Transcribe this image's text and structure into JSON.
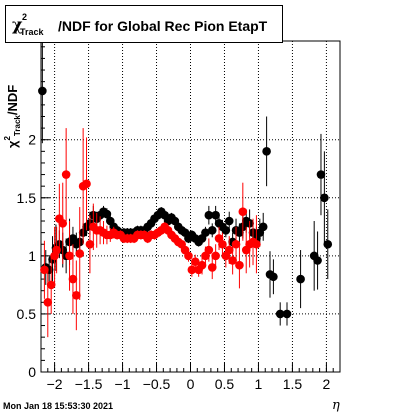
{
  "title": {
    "chi": "χ",
    "sup": "2",
    "sub": "Track",
    "rest": "/NDF for Global Rec Pion EtapT"
  },
  "ylabel": {
    "chi": "χ",
    "sup": "2",
    "sub": "Track",
    "rest": "/NDF"
  },
  "xlabel": "η",
  "timestamp": "Mon Jan 18 15:53:30 2021",
  "colors": {
    "series_black": "#000000",
    "series_red": "#ff0000"
  },
  "chart_data": {
    "type": "scatter",
    "title": "χ²Track/NDF for Global Rec Pion EtapT",
    "xlabel": "η",
    "ylabel": "χ²Track/NDF",
    "xlim": [
      -2.2,
      2.2
    ],
    "ylim": [
      0,
      2.85
    ],
    "grid": true,
    "x_ticks": [
      {
        "v": -2,
        "label": "−2"
      },
      {
        "v": -1.5,
        "label": "−1.5"
      },
      {
        "v": -1,
        "label": "−1"
      },
      {
        "v": -0.5,
        "label": "−0.5"
      },
      {
        "v": 0,
        "label": "0"
      },
      {
        "v": 0.5,
        "label": "0.5"
      },
      {
        "v": 1,
        "label": "1"
      },
      {
        "v": 1.5,
        "label": "1.5"
      },
      {
        "v": 2,
        "label": "2"
      }
    ],
    "y_ticks": [
      {
        "v": 0,
        "label": "0"
      },
      {
        "v": 0.5,
        "label": "0.5"
      },
      {
        "v": 1,
        "label": "1"
      },
      {
        "v": 1.5,
        "label": "1.5"
      },
      {
        "v": 2,
        "label": "2"
      }
    ],
    "series": [
      {
        "color": "#000000",
        "points": [
          [
            -2.18,
            2.42,
            0.45
          ],
          [
            -2.13,
            0.9,
            0.15
          ],
          [
            -2.08,
            0.88,
            0.1
          ],
          [
            -2.03,
            0.97,
            0.2
          ],
          [
            -1.98,
            1.07,
            0.2
          ],
          [
            -1.93,
            1.1,
            0.12
          ],
          [
            -1.88,
            1.05,
            0.15
          ],
          [
            -1.83,
            1.0,
            0.15
          ],
          [
            -1.78,
            1.12,
            0.2
          ],
          [
            -1.73,
            1.15,
            0.1
          ],
          [
            -1.68,
            1.1,
            0.1
          ],
          [
            -1.63,
            1.12,
            0.1
          ],
          [
            -1.58,
            1.2,
            0.08
          ],
          [
            -1.53,
            1.25,
            0.08
          ],
          [
            -1.48,
            1.28,
            0.1
          ],
          [
            -1.43,
            1.35,
            0.08
          ],
          [
            -1.38,
            1.32,
            0.06
          ],
          [
            -1.33,
            1.35,
            0.05
          ],
          [
            -1.28,
            1.38,
            0.05
          ],
          [
            -1.23,
            1.36,
            0.05
          ],
          [
            -1.18,
            1.3,
            0.05
          ],
          [
            -1.13,
            1.25,
            0.05
          ],
          [
            -1.08,
            1.22,
            0.04
          ],
          [
            -1.03,
            1.2,
            0.04
          ],
          [
            -0.98,
            1.2,
            0.04
          ],
          [
            -0.93,
            1.2,
            0.04
          ],
          [
            -0.88,
            1.2,
            0.04
          ],
          [
            -0.83,
            1.2,
            0.04
          ],
          [
            -0.78,
            1.22,
            0.04
          ],
          [
            -0.73,
            1.22,
            0.04
          ],
          [
            -0.68,
            1.22,
            0.04
          ],
          [
            -0.63,
            1.25,
            0.04
          ],
          [
            -0.58,
            1.28,
            0.04
          ],
          [
            -0.53,
            1.32,
            0.04
          ],
          [
            -0.48,
            1.35,
            0.04
          ],
          [
            -0.43,
            1.38,
            0.04
          ],
          [
            -0.38,
            1.35,
            0.04
          ],
          [
            -0.33,
            1.3,
            0.04
          ],
          [
            -0.28,
            1.33,
            0.04
          ],
          [
            -0.23,
            1.3,
            0.04
          ],
          [
            -0.18,
            1.25,
            0.04
          ],
          [
            -0.13,
            1.22,
            0.04
          ],
          [
            -0.08,
            1.2,
            0.04
          ],
          [
            -0.03,
            1.15,
            0.04
          ],
          [
            0.02,
            1.18,
            0.04
          ],
          [
            0.07,
            1.15,
            0.04
          ],
          [
            0.12,
            1.12,
            0.04
          ],
          [
            0.17,
            1.15,
            0.05
          ],
          [
            0.22,
            1.2,
            0.05
          ],
          [
            0.27,
            1.35,
            0.08
          ],
          [
            0.32,
            1.22,
            0.06
          ],
          [
            0.37,
            1.35,
            0.08
          ],
          [
            0.42,
            1.28,
            0.06
          ],
          [
            0.47,
            1.25,
            0.06
          ],
          [
            0.52,
            1.22,
            0.06
          ],
          [
            0.57,
            1.3,
            0.08
          ],
          [
            0.62,
            1.12,
            0.08
          ],
          [
            0.67,
            1.22,
            0.1
          ],
          [
            0.72,
            1.2,
            0.08
          ],
          [
            0.77,
            1.25,
            0.1
          ],
          [
            0.82,
            1.3,
            0.1
          ],
          [
            0.87,
            1.28,
            0.12
          ],
          [
            0.92,
            1.2,
            0.1
          ],
          [
            0.97,
            1.15,
            0.1
          ],
          [
            1.02,
            1.2,
            0.12
          ],
          [
            1.07,
            1.25,
            0.12
          ],
          [
            1.12,
            1.9,
            0.3
          ],
          [
            1.17,
            0.84,
            0.2
          ],
          [
            1.22,
            0.82,
            0.15
          ],
          [
            1.32,
            0.5,
            0.1
          ],
          [
            1.42,
            0.5,
            0.1
          ],
          [
            1.62,
            0.8,
            0.25
          ],
          [
            1.82,
            1.0,
            0.3
          ],
          [
            1.87,
            0.96,
            0.25
          ],
          [
            1.92,
            1.7,
            0.35
          ],
          [
            1.97,
            1.5,
            0.4
          ],
          [
            2.02,
            1.1,
            0.3
          ]
        ]
      },
      {
        "color": "#ff0000",
        "points": [
          [
            -2.15,
            0.88,
            0.25
          ],
          [
            -2.1,
            0.6,
            0.3
          ],
          [
            -2.05,
            0.75,
            0.25
          ],
          [
            -2.0,
            1.0,
            0.25
          ],
          [
            -1.97,
            1.05,
            0.2
          ],
          [
            -1.93,
            1.32,
            0.3
          ],
          [
            -1.88,
            1.28,
            0.35
          ],
          [
            -1.83,
            1.7,
            0.4
          ],
          [
            -1.78,
            1.0,
            0.3
          ],
          [
            -1.73,
            0.8,
            0.3
          ],
          [
            -1.68,
            0.66,
            0.3
          ],
          [
            -1.63,
            1.02,
            0.4
          ],
          [
            -1.58,
            1.6,
            0.5
          ],
          [
            -1.53,
            1.62,
            0.4
          ],
          [
            -1.48,
            1.1,
            0.25
          ],
          [
            -1.43,
            1.25,
            0.2
          ],
          [
            -1.38,
            1.22,
            0.15
          ],
          [
            -1.33,
            1.22,
            0.12
          ],
          [
            -1.28,
            1.2,
            0.1
          ],
          [
            -1.23,
            1.18,
            0.08
          ],
          [
            -1.18,
            1.18,
            0.06
          ],
          [
            -1.13,
            1.2,
            0.05
          ],
          [
            -1.08,
            1.18,
            0.04
          ],
          [
            -1.03,
            1.18,
            0.04
          ],
          [
            -0.98,
            1.15,
            0.04
          ],
          [
            -0.93,
            1.15,
            0.04
          ],
          [
            -0.88,
            1.15,
            0.04
          ],
          [
            -0.83,
            1.15,
            0.04
          ],
          [
            -0.78,
            1.18,
            0.04
          ],
          [
            -0.73,
            1.18,
            0.04
          ],
          [
            -0.68,
            1.18,
            0.04
          ],
          [
            -0.63,
            1.15,
            0.04
          ],
          [
            -0.58,
            1.18,
            0.04
          ],
          [
            -0.53,
            1.18,
            0.04
          ],
          [
            -0.48,
            1.2,
            0.04
          ],
          [
            -0.43,
            1.22,
            0.04
          ],
          [
            -0.38,
            1.25,
            0.04
          ],
          [
            -0.33,
            1.22,
            0.04
          ],
          [
            -0.28,
            1.18,
            0.04
          ],
          [
            -0.23,
            1.15,
            0.04
          ],
          [
            -0.18,
            1.12,
            0.04
          ],
          [
            -0.13,
            1.1,
            0.04
          ],
          [
            -0.08,
            1.05,
            0.05
          ],
          [
            -0.03,
            1.0,
            0.05
          ],
          [
            0.02,
            0.88,
            0.06
          ],
          [
            0.07,
            0.95,
            0.06
          ],
          [
            0.12,
            0.88,
            0.06
          ],
          [
            0.17,
            0.92,
            0.08
          ],
          [
            0.22,
            1.0,
            0.08
          ],
          [
            0.27,
            1.05,
            0.1
          ],
          [
            0.32,
            0.9,
            0.1
          ],
          [
            0.37,
            1.0,
            0.1
          ],
          [
            0.42,
            1.15,
            0.1
          ],
          [
            0.47,
            1.1,
            0.1
          ],
          [
            0.52,
            1.0,
            0.1
          ],
          [
            0.57,
            1.05,
            0.12
          ],
          [
            0.62,
            0.96,
            0.12
          ],
          [
            0.67,
            1.1,
            0.15
          ],
          [
            0.72,
            0.92,
            0.2
          ],
          [
            0.77,
            1.38,
            0.25
          ],
          [
            0.82,
            1.05,
            0.2
          ],
          [
            0.87,
            1.1,
            0.2
          ],
          [
            0.92,
            1.12,
            0.2
          ],
          [
            0.97,
            1.1,
            0.25
          ]
        ]
      }
    ]
  }
}
